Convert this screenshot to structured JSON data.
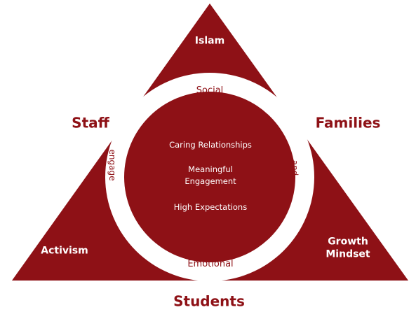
{
  "diagram": {
    "colors": {
      "maroon": "#8e1116",
      "ring": "#ffffff",
      "background": "#ffffff"
    },
    "triangle_top": "Islam",
    "left_side": "Staff",
    "right_side": "Families",
    "bottom_side": "Students",
    "bottom_left_corner": "Activism",
    "bottom_right_corner_line1": "Growth",
    "bottom_right_corner_line2": "Mindset",
    "ring_top": "Social",
    "ring_bottom": "Emotional",
    "ring_left_vertical": "engage",
    "ring_right_vertical": "and",
    "inner_items": [
      "Caring Relationships",
      "Meaningful",
      "Engagement",
      "High Expectations"
    ]
  }
}
